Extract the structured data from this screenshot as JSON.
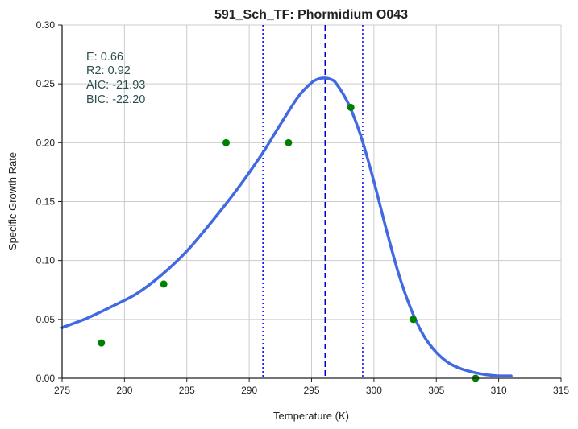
{
  "chart_data": {
    "type": "scatter",
    "title": "591_Sch_TF: Phormidium O043",
    "xlabel": "Temperature (K)",
    "ylabel": "Specific Growth Rate",
    "xlim": [
      275,
      315
    ],
    "ylim": [
      0,
      0.3
    ],
    "xticks": [
      "275",
      "280",
      "285",
      "290",
      "295",
      "300",
      "305",
      "310",
      "315"
    ],
    "yticks": [
      "0.00",
      "0.05",
      "0.10",
      "0.15",
      "0.20",
      "0.25",
      "0.30"
    ],
    "grid": true,
    "stats": [
      "E:  0.66",
      "R2:  0.92",
      "AIC: -21.93",
      "BIC: -22.20"
    ],
    "observations": {
      "color": "#008000",
      "x": [
        278.15,
        283.15,
        288.15,
        293.15,
        298.15,
        303.15,
        308.15
      ],
      "y": [
        0.03,
        0.08,
        0.2,
        0.2,
        0.23,
        0.05,
        0.0
      ]
    },
    "fit_curve": {
      "color": "#4169e1",
      "x": [
        275,
        277,
        279,
        281,
        283,
        285,
        287,
        289,
        291,
        292,
        293,
        294,
        295,
        295.5,
        296,
        296.5,
        297,
        298,
        299,
        300,
        301,
        302,
        303,
        304,
        305,
        306,
        307,
        308,
        309,
        310,
        311
      ],
      "y": [
        0.043,
        0.051,
        0.061,
        0.072,
        0.088,
        0.108,
        0.133,
        0.16,
        0.19,
        0.207,
        0.224,
        0.24,
        0.251,
        0.254,
        0.255,
        0.254,
        0.25,
        0.232,
        0.204,
        0.167,
        0.126,
        0.088,
        0.058,
        0.036,
        0.022,
        0.013,
        0.008,
        0.005,
        0.003,
        0.002,
        0.002
      ]
    },
    "peak_line": {
      "x": 296.1,
      "color": "#0000cd",
      "style": "dashed"
    },
    "bound_lines": {
      "x": [
        291.1,
        299.1
      ],
      "color": "#0000ff",
      "style": "dotted"
    }
  }
}
